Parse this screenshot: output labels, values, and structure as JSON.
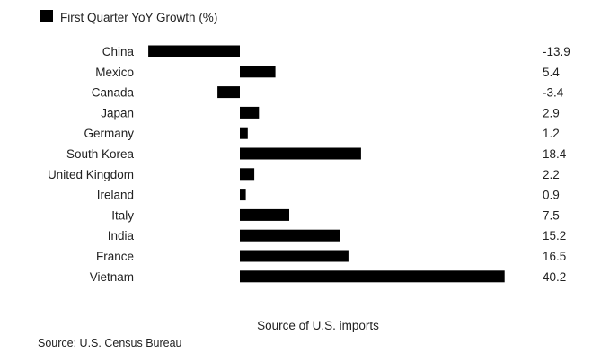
{
  "chart_data": {
    "type": "bar",
    "orientation": "horizontal",
    "legend": {
      "label": "First Quarter YoY Growth (%)",
      "color": "#000000",
      "placement": "top-left"
    },
    "categories": [
      "China",
      "Mexico",
      "Canada",
      "Japan",
      "Germany",
      "South Korea",
      "United Kingdom",
      "Ireland",
      "Italy",
      "India",
      "France",
      "Vietnam"
    ],
    "series": [
      {
        "name": "First Quarter YoY Growth (%)",
        "values": [
          -13.9,
          5.4,
          -3.4,
          2.9,
          1.2,
          18.4,
          2.2,
          0.9,
          7.5,
          15.2,
          16.5,
          40.2
        ],
        "labels": [
          "-13.9",
          "5.4",
          "-3.4",
          "2.9",
          "1.2",
          "18.4",
          "2.2",
          "0.9",
          "7.5",
          "15.2",
          "16.5",
          "40.2"
        ]
      }
    ],
    "xlabel": "Source of U.S. imports",
    "xlim": [
      -13.9,
      40.2
    ],
    "grid": false,
    "bar_color": "#000000"
  },
  "source": "Source: U.S. Census Bureau"
}
